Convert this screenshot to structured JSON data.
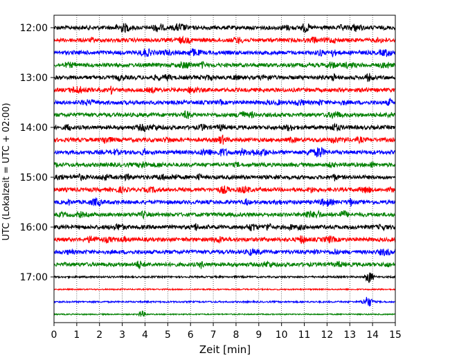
{
  "chart_data": {
    "type": "line",
    "description_type": "helicorder",
    "xlabel": "Zeit  [min]",
    "ylabel": "UTC (Lokalzeit = UTC + 02:00)",
    "xlim": [
      0,
      15
    ],
    "x_ticks": [
      0,
      1,
      2,
      3,
      4,
      5,
      6,
      7,
      8,
      9,
      10,
      11,
      12,
      13,
      14,
      15
    ],
    "x_tick_labels": [
      "0",
      "1",
      "2",
      "3",
      "4",
      "5",
      "6",
      "7",
      "8",
      "9",
      "10",
      "11",
      "12",
      "13",
      "14",
      "15"
    ],
    "y_tick_labels": [
      "12:00",
      "13:00",
      "14:00",
      "15:00",
      "16:00",
      "17:00"
    ],
    "y_tick_rows": [
      0,
      4,
      8,
      12,
      16,
      20
    ],
    "trace_start_times": [
      "12:00",
      "12:15",
      "12:30",
      "12:45",
      "13:00",
      "13:15",
      "13:30",
      "13:45",
      "14:00",
      "14:15",
      "14:30",
      "14:45",
      "15:00",
      "15:15",
      "15:30",
      "15:45",
      "16:00",
      "16:15",
      "16:30",
      "16:45",
      "17:00",
      "17:15",
      "17:30",
      "17:45"
    ],
    "minutes_per_trace": 15,
    "color_cycle": [
      "#000000",
      "#ff0000",
      "#0000ff",
      "#008000"
    ],
    "trace_noise_level": [
      1.0,
      1.0,
      1.0,
      1.0,
      1.0,
      1.0,
      1.0,
      1.0,
      1.0,
      1.0,
      1.0,
      1.0,
      1.0,
      1.0,
      1.0,
      1.0,
      1.0,
      1.0,
      1.0,
      1.0,
      0.3,
      0.15,
      0.25,
      0.12
    ],
    "grid": "vertical dotted at each minute",
    "legend": "none"
  }
}
